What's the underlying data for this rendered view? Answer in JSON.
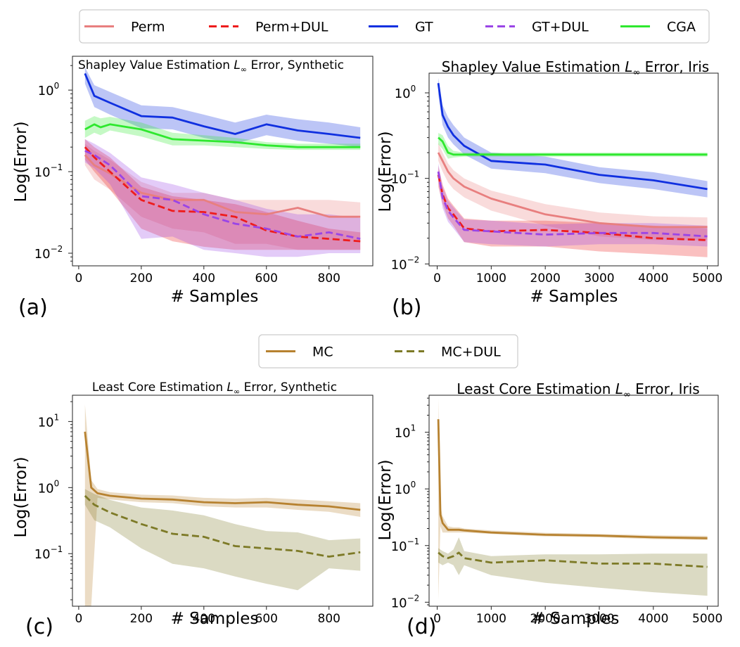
{
  "legend_top": [
    {
      "label": "Perm",
      "color": "#e87f7f",
      "dash": false
    },
    {
      "label": "Perm+DUL",
      "color": "#ee1c1c",
      "dash": true
    },
    {
      "label": "GT",
      "color": "#1030e0",
      "dash": false
    },
    {
      "label": "GT+DUL",
      "color": "#9a45e6",
      "dash": true
    },
    {
      "label": "CGA",
      "color": "#2ee82e",
      "dash": false
    }
  ],
  "legend_bottom": [
    {
      "label": "MC",
      "color": "#b78230",
      "dash": false
    },
    {
      "label": "MC+DUL",
      "color": "#7d7a27",
      "dash": true
    }
  ],
  "chart_data": [
    {
      "type": "line",
      "panel": "(a)",
      "title": "Shapley Value Estimation L∞ Error, Synthetic",
      "xlabel": "# Samples",
      "ylabel": "Log(Error)",
      "yscale": "log",
      "xlim": [
        -20,
        940
      ],
      "ylim": [
        0.007,
        2.6
      ],
      "xticks": [
        0,
        200,
        400,
        600,
        800
      ],
      "yticks": [
        0.01,
        0.1,
        1
      ],
      "ytick_labels": [
        [
          "10",
          "−2"
        ],
        [
          "10",
          "−1"
        ],
        [
          "10",
          "0"
        ]
      ],
      "series": [
        {
          "name": "Perm",
          "color": "#e87f7f",
          "dash": false,
          "x": [
            20,
            50,
            100,
            200,
            300,
            400,
            500,
            600,
            700,
            800,
            900
          ],
          "y": [
            0.16,
            0.12,
            0.095,
            0.055,
            0.045,
            0.045,
            0.032,
            0.03,
            0.036,
            0.028,
            0.028
          ],
          "lo": [
            0.12,
            0.08,
            0.06,
            0.028,
            0.02,
            0.018,
            0.013,
            0.013,
            0.011,
            0.011,
            0.011
          ],
          "hi": [
            0.22,
            0.18,
            0.14,
            0.075,
            0.055,
            0.055,
            0.045,
            0.045,
            0.045,
            0.045,
            0.042
          ]
        },
        {
          "name": "Perm+DUL",
          "color": "#ee1c1c",
          "dash": true,
          "x": [
            20,
            50,
            100,
            200,
            300,
            400,
            500,
            600,
            700,
            800,
            900
          ],
          "y": [
            0.2,
            0.15,
            0.1,
            0.045,
            0.033,
            0.032,
            0.028,
            0.019,
            0.016,
            0.015,
            0.014
          ],
          "lo": [
            0.14,
            0.1,
            0.06,
            0.02,
            0.014,
            0.012,
            0.011,
            0.011,
            0.011,
            0.011,
            0.011
          ],
          "hi": [
            0.25,
            0.2,
            0.15,
            0.065,
            0.05,
            0.045,
            0.04,
            0.032,
            0.025,
            0.02,
            0.018
          ]
        },
        {
          "name": "GT+DUL",
          "color": "#9a45e6",
          "dash": true,
          "x": [
            20,
            50,
            100,
            200,
            300,
            400,
            500,
            600,
            700,
            800,
            900
          ],
          "y": [
            0.18,
            0.16,
            0.12,
            0.05,
            0.045,
            0.03,
            0.023,
            0.02,
            0.016,
            0.018,
            0.015
          ],
          "lo": [
            0.13,
            0.11,
            0.07,
            0.015,
            0.016,
            0.011,
            0.01,
            0.009,
            0.009,
            0.01,
            0.01
          ],
          "hi": [
            0.25,
            0.22,
            0.17,
            0.085,
            0.07,
            0.055,
            0.045,
            0.035,
            0.03,
            0.03,
            0.027
          ]
        },
        {
          "name": "GT",
          "color": "#1030e0",
          "dash": false,
          "x": [
            20,
            50,
            100,
            200,
            300,
            400,
            500,
            600,
            700,
            800,
            900
          ],
          "y": [
            1.6,
            0.85,
            0.7,
            0.48,
            0.46,
            0.36,
            0.29,
            0.38,
            0.32,
            0.29,
            0.26
          ],
          "lo": [
            1.2,
            0.62,
            0.5,
            0.34,
            0.33,
            0.26,
            0.22,
            0.28,
            0.24,
            0.22,
            0.2
          ],
          "hi": [
            1.9,
            1.15,
            0.95,
            0.65,
            0.62,
            0.5,
            0.4,
            0.5,
            0.44,
            0.4,
            0.35
          ]
        },
        {
          "name": "CGA",
          "color": "#2ee82e",
          "dash": false,
          "x": [
            20,
            50,
            70,
            100,
            200,
            300,
            400,
            500,
            600,
            700,
            800,
            900
          ],
          "y": [
            0.33,
            0.38,
            0.35,
            0.38,
            0.33,
            0.25,
            0.24,
            0.23,
            0.21,
            0.2,
            0.2,
            0.2
          ],
          "lo": [
            0.26,
            0.3,
            0.28,
            0.32,
            0.27,
            0.21,
            0.21,
            0.2,
            0.19,
            0.185,
            0.185,
            0.185
          ],
          "hi": [
            0.42,
            0.48,
            0.45,
            0.47,
            0.4,
            0.3,
            0.28,
            0.26,
            0.23,
            0.22,
            0.22,
            0.22
          ]
        }
      ]
    },
    {
      "type": "line",
      "panel": "(b)",
      "title": "Shapley Value Estimation L∞ Error, Iris",
      "xlabel": "# Samples",
      "ylabel": "Log(Error)",
      "yscale": "log",
      "xlim": [
        -150,
        5200
      ],
      "ylim": [
        0.0095,
        1.7
      ],
      "xticks": [
        0,
        1000,
        2000,
        3000,
        4000,
        5000
      ],
      "yticks": [
        0.01,
        0.1,
        1
      ],
      "ytick_labels": [
        [
          "10",
          "−2"
        ],
        [
          "10",
          "−1"
        ],
        [
          "10",
          "0"
        ]
      ],
      "series": [
        {
          "name": "Perm",
          "color": "#e87f7f",
          "dash": false,
          "x": [
            20,
            100,
            200,
            300,
            500,
            1000,
            2000,
            3000,
            4000,
            5000
          ],
          "y": [
            0.2,
            0.16,
            0.12,
            0.1,
            0.08,
            0.058,
            0.038,
            0.03,
            0.027,
            0.027
          ],
          "lo": [
            0.16,
            0.12,
            0.09,
            0.075,
            0.06,
            0.042,
            0.028,
            0.021,
            0.019,
            0.019
          ],
          "hi": [
            0.26,
            0.2,
            0.15,
            0.125,
            0.1,
            0.072,
            0.05,
            0.04,
            0.036,
            0.035
          ]
        },
        {
          "name": "Perm+DUL",
          "color": "#ee1c1c",
          "dash": true,
          "x": [
            20,
            100,
            200,
            300,
            500,
            1000,
            2000,
            3000,
            4000,
            5000
          ],
          "y": [
            0.11,
            0.065,
            0.045,
            0.038,
            0.026,
            0.024,
            0.025,
            0.023,
            0.02,
            0.019
          ],
          "lo": [
            0.08,
            0.05,
            0.034,
            0.028,
            0.018,
            0.016,
            0.016,
            0.014,
            0.013,
            0.012
          ],
          "hi": [
            0.14,
            0.085,
            0.058,
            0.048,
            0.034,
            0.032,
            0.032,
            0.03,
            0.028,
            0.026
          ]
        },
        {
          "name": "GT+DUL",
          "color": "#9a45e6",
          "dash": true,
          "x": [
            20,
            100,
            200,
            300,
            500,
            1000,
            2000,
            3000,
            4000,
            5000
          ],
          "y": [
            0.12,
            0.06,
            0.042,
            0.035,
            0.025,
            0.024,
            0.022,
            0.023,
            0.023,
            0.021
          ],
          "lo": [
            0.09,
            0.045,
            0.031,
            0.026,
            0.018,
            0.017,
            0.016,
            0.017,
            0.017,
            0.016
          ],
          "hi": [
            0.15,
            0.08,
            0.055,
            0.046,
            0.033,
            0.032,
            0.029,
            0.03,
            0.03,
            0.028
          ]
        },
        {
          "name": "GT",
          "color": "#1030e0",
          "dash": false,
          "x": [
            20,
            100,
            200,
            300,
            500,
            1000,
            2000,
            3000,
            4000,
            5000
          ],
          "y": [
            1.3,
            0.55,
            0.4,
            0.32,
            0.24,
            0.16,
            0.145,
            0.11,
            0.095,
            0.075
          ],
          "lo": [
            0.95,
            0.42,
            0.3,
            0.25,
            0.19,
            0.13,
            0.115,
            0.088,
            0.075,
            0.06
          ],
          "hi": [
            1.5,
            0.72,
            0.52,
            0.42,
            0.3,
            0.2,
            0.18,
            0.135,
            0.118,
            0.093
          ]
        },
        {
          "name": "CGA",
          "color": "#2ee82e",
          "dash": false,
          "x": [
            20,
            100,
            200,
            300,
            500,
            1000,
            2000,
            3000,
            4000,
            5000
          ],
          "y": [
            0.3,
            0.27,
            0.2,
            0.19,
            0.19,
            0.19,
            0.19,
            0.19,
            0.19,
            0.19
          ],
          "lo": [
            0.25,
            0.22,
            0.17,
            0.175,
            0.18,
            0.18,
            0.18,
            0.18,
            0.18,
            0.18
          ],
          "hi": [
            0.34,
            0.32,
            0.24,
            0.21,
            0.2,
            0.2,
            0.2,
            0.2,
            0.2,
            0.2
          ]
        }
      ]
    },
    {
      "type": "line",
      "panel": "(c)",
      "title": "Least Core Estimation L∞ Error, Synthetic",
      "xlabel": "# Samples",
      "ylabel": "Log(Error)",
      "yscale": "log",
      "xlim": [
        -20,
        940
      ],
      "ylim": [
        0.016,
        25
      ],
      "xticks": [
        0,
        200,
        400,
        600,
        800
      ],
      "yticks": [
        0.1,
        1,
        10
      ],
      "ytick_labels": [
        [
          "10",
          "−1"
        ],
        [
          "10",
          "0"
        ],
        [
          "10",
          "1"
        ]
      ],
      "series": [
        {
          "name": "MC",
          "color": "#b78230",
          "dash": false,
          "x": [
            20,
            40,
            60,
            100,
            200,
            300,
            400,
            500,
            600,
            700,
            800,
            900
          ],
          "y": [
            7,
            1.0,
            0.82,
            0.75,
            0.68,
            0.66,
            0.6,
            0.58,
            0.6,
            0.55,
            0.52,
            0.46
          ],
          "lo": [
            0.016,
            0.016,
            0.7,
            0.66,
            0.6,
            0.58,
            0.52,
            0.5,
            0.5,
            0.46,
            0.43,
            0.36
          ],
          "hi": [
            18,
            1.3,
            0.95,
            0.85,
            0.78,
            0.76,
            0.7,
            0.68,
            0.7,
            0.66,
            0.62,
            0.58
          ]
        },
        {
          "name": "MC+DUL",
          "color": "#7d7a27",
          "dash": true,
          "x": [
            20,
            50,
            100,
            200,
            300,
            400,
            500,
            600,
            700,
            800,
            900
          ],
          "y": [
            0.75,
            0.55,
            0.42,
            0.28,
            0.2,
            0.18,
            0.13,
            0.12,
            0.11,
            0.09,
            0.105
          ],
          "lo": [
            0.55,
            0.32,
            0.25,
            0.12,
            0.07,
            0.06,
            0.045,
            0.035,
            0.028,
            0.06,
            0.055
          ],
          "hi": [
            0.95,
            0.8,
            0.65,
            0.5,
            0.45,
            0.38,
            0.28,
            0.22,
            0.21,
            0.16,
            0.17
          ]
        }
      ]
    },
    {
      "type": "line",
      "panel": "(d)",
      "title": "Least Core Estimation L∞ Error, Iris",
      "xlabel": "# Samples",
      "ylabel": "Log(Error)",
      "yscale": "log",
      "xlim": [
        -150,
        5200
      ],
      "ylim": [
        0.0085,
        45
      ],
      "xticks": [
        0,
        1000,
        2000,
        3000,
        4000,
        5000
      ],
      "yticks": [
        0.01,
        0.1,
        1,
        10
      ],
      "ytick_labels": [
        [
          "10",
          "−2"
        ],
        [
          "10",
          "−1"
        ],
        [
          "10",
          "0"
        ],
        [
          "10",
          "1"
        ]
      ],
      "series": [
        {
          "name": "MC",
          "color": "#b78230",
          "dash": false,
          "x": [
            20,
            60,
            100,
            200,
            300,
            400,
            500,
            1000,
            2000,
            3000,
            4000,
            5000
          ],
          "y": [
            17,
            0.35,
            0.25,
            0.19,
            0.19,
            0.19,
            0.185,
            0.17,
            0.155,
            0.15,
            0.14,
            0.135
          ],
          "lo": [
            0.011,
            0.22,
            0.17,
            0.17,
            0.17,
            0.17,
            0.17,
            0.16,
            0.145,
            0.14,
            0.13,
            0.125
          ],
          "hi": [
            40,
            0.5,
            0.33,
            0.22,
            0.21,
            0.21,
            0.2,
            0.185,
            0.168,
            0.16,
            0.152,
            0.148
          ]
        },
        {
          "name": "MC+DUL",
          "color": "#7d7a27",
          "dash": true,
          "x": [
            20,
            100,
            200,
            300,
            400,
            500,
            1000,
            2000,
            3000,
            4000,
            5000
          ],
          "y": [
            0.075,
            0.065,
            0.06,
            0.065,
            0.075,
            0.06,
            0.05,
            0.055,
            0.048,
            0.048,
            0.042
          ],
          "lo": [
            0.05,
            0.045,
            0.05,
            0.045,
            0.03,
            0.045,
            0.03,
            0.022,
            0.018,
            0.015,
            0.013
          ],
          "hi": [
            0.09,
            0.08,
            0.072,
            0.085,
            0.14,
            0.08,
            0.065,
            0.07,
            0.07,
            0.072,
            0.072
          ]
        }
      ]
    }
  ]
}
